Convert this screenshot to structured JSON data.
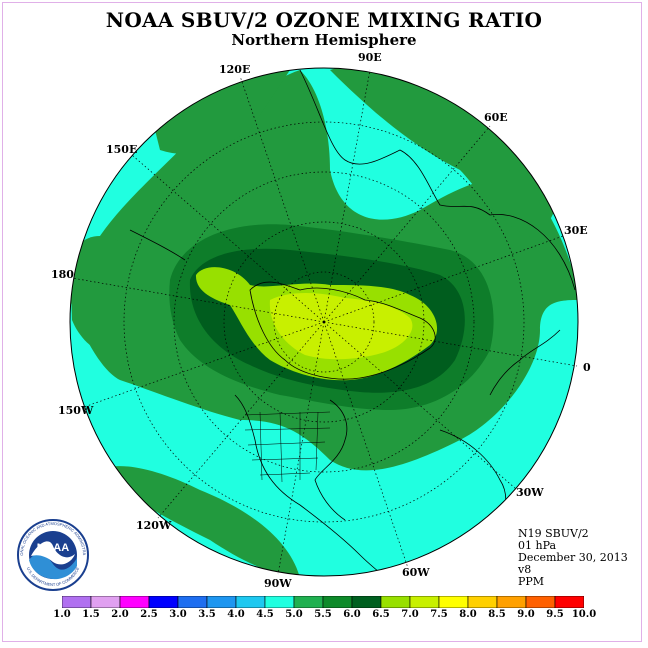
{
  "title": "NOAA SBUV/2 OZONE MIXING RATIO",
  "subtitle": "Northern Hemisphere",
  "longitude_labels": {
    "lon_90e": "90E",
    "lon_120e": "120E",
    "lon_60e": "60E",
    "lon_150e": "150E",
    "lon_30e": "30E",
    "lon_180": "180",
    "lon_0": "0",
    "lon_150w": "150W",
    "lon_30w": "30W",
    "lon_120w": "120W",
    "lon_60w": "60W",
    "lon_90w": "90W"
  },
  "info": {
    "instrument": "N19 SBUV/2",
    "level": "01 hPa",
    "date": "December 30, 2013",
    "version": "v8",
    "units": "PPM"
  },
  "logo": {
    "text": "NOAA",
    "ring_text_top": "NATIONAL OCEANIC AND ATMOSPHERIC ADMINISTRATION",
    "ring_text_bottom": "U.S. DEPARTMENT OF COMMERCE"
  },
  "colorbar": {
    "labels": [
      "1.0",
      "1.5",
      "2.0",
      "2.5",
      "3.0",
      "3.5",
      "4.0",
      "4.5",
      "5.0",
      "5.5",
      "6.0",
      "6.5",
      "7.0",
      "7.5",
      "8.0",
      "8.5",
      "9.0",
      "9.5",
      "10.0"
    ],
    "colors": [
      "#b070f0",
      "#e0a0f0",
      "#ff00ff",
      "#0000ff",
      "#1e6ef0",
      "#1e96f0",
      "#1ec8f0",
      "#20ffe0",
      "#20b050",
      "#0e8a2a",
      "#006020",
      "#98e000",
      "#c8f000",
      "#ffff00",
      "#ffd000",
      "#ffa000",
      "#ff6000",
      "#ff0000",
      "#8b5a2b"
    ]
  },
  "map_colors": {
    "cyan": "#20ffe0",
    "green_light": "#229a3e",
    "green_mid": "#0e7d2a",
    "green_dark": "#005d1e",
    "yellow_green": "#98e000",
    "lime": "#c8f000"
  }
}
